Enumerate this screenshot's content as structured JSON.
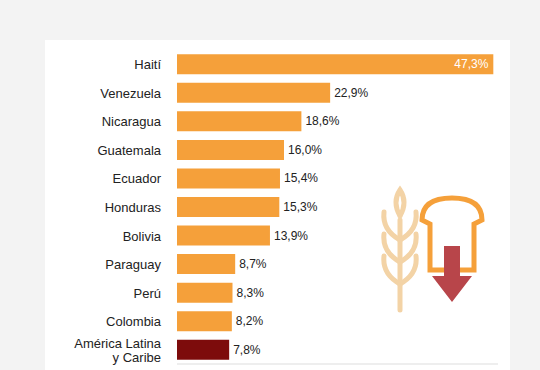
{
  "chart_data": {
    "type": "bar",
    "orientation": "horizontal",
    "categories": [
      "Haití",
      "Venezuela",
      "Nicaragua",
      "Guatemala",
      "Ecuador",
      "Honduras",
      "Bolivia",
      "Paraguay",
      "Perú",
      "Colombia",
      "América Latina y Caribe"
    ],
    "values": [
      47.3,
      22.9,
      18.6,
      16.0,
      15.4,
      15.3,
      13.9,
      8.7,
      8.3,
      8.2,
      7.8
    ],
    "value_labels": [
      "47,3%",
      "22,9%",
      "18,6%",
      "16,0%",
      "15,4%",
      "15,3%",
      "13,9%",
      "8,7%",
      "8,3%",
      "8,2%",
      "7,8%"
    ],
    "colors": [
      "#f5a03a",
      "#f5a03a",
      "#f5a03a",
      "#f5a03a",
      "#f5a03a",
      "#f5a03a",
      "#f5a03a",
      "#f5a03a",
      "#f5a03a",
      "#f5a03a",
      "#7d0c0c"
    ],
    "xlim": [
      0,
      48
    ],
    "data_labels": true,
    "tick_labels": false,
    "grid": false
  }
}
